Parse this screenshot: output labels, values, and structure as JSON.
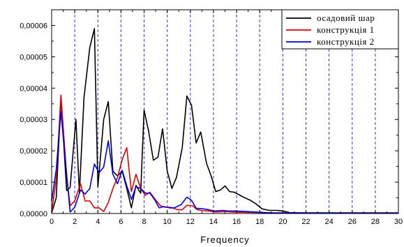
{
  "chart_data": {
    "type": "line",
    "title": "",
    "xlabel": "Frequency",
    "ylabel": "",
    "xlim": [
      0,
      30
    ],
    "ylim": [
      0,
      6.5e-05
    ],
    "x_ticks": [
      "0",
      "2",
      "4",
      "6",
      "8",
      "10",
      "12",
      "14",
      "16",
      "18",
      "20",
      "22",
      "24",
      "26",
      "28",
      "30"
    ],
    "y_ticks": [
      {
        "value": 0,
        "label": "0,00000"
      },
      {
        "value": 1e-05,
        "label": "0,00001"
      },
      {
        "value": 2e-05,
        "label": "0,00002"
      },
      {
        "value": 3e-05,
        "label": "0,00003"
      },
      {
        "value": 4e-05,
        "label": "0,00004"
      },
      {
        "value": 5e-05,
        "label": "0,00005"
      },
      {
        "value": 6e-05,
        "label": "0,00006"
      }
    ],
    "vertical_gridlines_x": [
      2,
      4,
      6,
      8,
      10,
      12,
      14,
      16,
      18,
      20,
      22,
      24,
      26,
      28
    ],
    "grid_color": "#3333cc",
    "legend_position": "top-right",
    "series": [
      {
        "name": "осадовий шар",
        "color": "#000000",
        "points": [
          [
            0,
            2e-07
          ],
          [
            0.4,
            5e-06
          ],
          [
            0.8,
            3.7e-05
          ],
          [
            1.3,
            7.3e-06
          ],
          [
            1.6,
            8.3e-06
          ],
          [
            2.1,
            3e-05
          ],
          [
            2.4,
            6.5e-06
          ],
          [
            2.8,
            3.7e-05
          ],
          [
            3.3,
            5.3e-05
          ],
          [
            3.7,
            5.9e-05
          ],
          [
            4.0,
            8.5e-06
          ],
          [
            4.5,
            3e-05
          ],
          [
            4.9,
            3.57e-05
          ],
          [
            5.3,
            1.35e-05
          ],
          [
            5.7,
            1.2e-05
          ],
          [
            6.1,
            1.35e-05
          ],
          [
            6.5,
            8e-06
          ],
          [
            6.9,
            1.8e-06
          ],
          [
            7.3,
            9e-06
          ],
          [
            7.7,
            6.5e-06
          ],
          [
            8.0,
            3.3e-05
          ],
          [
            8.4,
            2.6e-05
          ],
          [
            8.8,
            1.7e-05
          ],
          [
            9.2,
            1.8e-05
          ],
          [
            9.6,
            2.7e-05
          ],
          [
            10.0,
            1.35e-05
          ],
          [
            10.4,
            8e-06
          ],
          [
            10.8,
            1.15e-05
          ],
          [
            11.3,
            2.1e-05
          ],
          [
            11.7,
            3.75e-05
          ],
          [
            12.1,
            3.45e-05
          ],
          [
            12.5,
            2.25e-05
          ],
          [
            12.9,
            2.6e-05
          ],
          [
            13.4,
            1.6e-05
          ],
          [
            13.8,
            1.2e-05
          ],
          [
            14.2,
            7e-06
          ],
          [
            14.6,
            7.5e-06
          ],
          [
            15.0,
            8.8e-06
          ],
          [
            15.4,
            7e-06
          ],
          [
            15.8,
            6.8e-06
          ],
          [
            16.2,
            6e-06
          ],
          [
            16.6,
            5.2e-06
          ],
          [
            17.2,
            4.2e-06
          ],
          [
            17.7,
            3e-06
          ],
          [
            18.2,
            1.5e-06
          ],
          [
            18.8,
            1e-06
          ],
          [
            19.5,
            1e-06
          ],
          [
            20.0,
            8e-07
          ],
          [
            20.6,
            3e-07
          ],
          [
            21.5,
            2e-07
          ],
          [
            30,
            2e-07
          ]
        ]
      },
      {
        "name": "конструкція 1",
        "color": "#e00000",
        "points": [
          [
            0,
            5e-07
          ],
          [
            0.4,
            1.1e-05
          ],
          [
            0.8,
            3.78e-05
          ],
          [
            1.3,
            1.2e-05
          ],
          [
            1.6,
            2.5e-06
          ],
          [
            2.0,
            4e-06
          ],
          [
            2.5,
            9.5e-06
          ],
          [
            2.9,
            4e-06
          ],
          [
            3.3,
            4e-06
          ],
          [
            3.7,
            1.8e-06
          ],
          [
            4.1,
            1.8e-06
          ],
          [
            4.5,
            6e-07
          ],
          [
            4.9,
            3.5e-06
          ],
          [
            5.3,
            8e-06
          ],
          [
            5.7,
            1.15e-05
          ],
          [
            6.1,
            1.72e-05
          ],
          [
            6.5,
            2.1e-05
          ],
          [
            6.9,
            7e-06
          ],
          [
            7.3,
            1.25e-05
          ],
          [
            7.7,
            8e-06
          ],
          [
            8.1,
            5.8e-06
          ],
          [
            8.5,
            6.8e-06
          ],
          [
            8.9,
            4.8e-06
          ],
          [
            9.4,
            2.5e-06
          ],
          [
            9.8,
            2e-06
          ],
          [
            10.3,
            2e-06
          ],
          [
            10.9,
            1.2e-06
          ],
          [
            11.3,
            1.2e-06
          ],
          [
            11.7,
            2.6e-06
          ],
          [
            12.2,
            2.5e-06
          ],
          [
            12.6,
            1.2e-06
          ],
          [
            13.1,
            9e-07
          ],
          [
            13.6,
            8e-07
          ],
          [
            14.2,
            5e-07
          ],
          [
            15,
            6e-07
          ],
          [
            16,
            4e-07
          ],
          [
            17,
            4e-07
          ],
          [
            18,
            3e-07
          ],
          [
            19,
            2e-07
          ],
          [
            30,
            1e-07
          ]
        ]
      },
      {
        "name": "конструкція 2",
        "color": "#0000dd",
        "points": [
          [
            0,
            4e-06
          ],
          [
            0.4,
            1.4e-05
          ],
          [
            0.8,
            3.25e-05
          ],
          [
            1.3,
            1.25e-05
          ],
          [
            1.6,
            5e-07
          ],
          [
            2.0,
            2e-06
          ],
          [
            2.5,
            7.5e-06
          ],
          [
            2.9,
            6.2e-06
          ],
          [
            3.3,
            8e-06
          ],
          [
            3.7,
            1.58e-05
          ],
          [
            4.1,
            1.3e-05
          ],
          [
            4.5,
            1.48e-05
          ],
          [
            4.9,
            2.32e-05
          ],
          [
            5.3,
            1.25e-05
          ],
          [
            5.7,
            9.5e-06
          ],
          [
            6.1,
            1.38e-05
          ],
          [
            6.5,
            8.8e-06
          ],
          [
            6.9,
            4.5e-06
          ],
          [
            7.3,
            8.5e-06
          ],
          [
            7.7,
            8e-06
          ],
          [
            8.1,
            6.5e-06
          ],
          [
            8.5,
            6.5e-06
          ],
          [
            8.9,
            4.5e-06
          ],
          [
            9.3,
            1.8e-06
          ],
          [
            9.7,
            2.2e-06
          ],
          [
            10.2,
            1.8e-06
          ],
          [
            10.6,
            1.8e-06
          ],
          [
            11.2,
            2.8e-06
          ],
          [
            11.7,
            5.2e-06
          ],
          [
            12.1,
            4.2e-06
          ],
          [
            12.5,
            1.7e-06
          ],
          [
            13.1,
            1.5e-06
          ],
          [
            13.6,
            1.2e-06
          ],
          [
            14.1,
            8e-07
          ],
          [
            14.8,
            1e-06
          ],
          [
            15.3,
            8e-07
          ],
          [
            16,
            8e-07
          ],
          [
            17,
            6e-07
          ],
          [
            18,
            4e-07
          ],
          [
            19,
            2e-07
          ],
          [
            30,
            1e-07
          ]
        ]
      }
    ]
  }
}
